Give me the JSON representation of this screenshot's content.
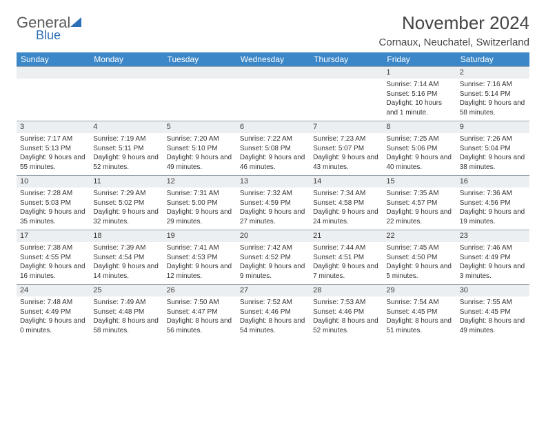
{
  "logo": {
    "general": "General",
    "blue": "Blue"
  },
  "title": "November 2024",
  "location": "Cornaux, Neuchatel, Switzerland",
  "colors": {
    "header_bg": "#3c87c7",
    "header_text": "#ffffff",
    "daynum_bg": "#eceff1",
    "border": "#9aa4ad",
    "text": "#333333",
    "logo_gray": "#5a5a5a",
    "logo_blue": "#2d6fb6"
  },
  "calendar": {
    "type": "table",
    "days_of_week": [
      "Sunday",
      "Monday",
      "Tuesday",
      "Wednesday",
      "Thursday",
      "Friday",
      "Saturday"
    ],
    "weeks": [
      [
        null,
        null,
        null,
        null,
        null,
        {
          "n": "1",
          "sr": "7:14 AM",
          "ss": "5:16 PM",
          "dl": "10 hours and 1 minute."
        },
        {
          "n": "2",
          "sr": "7:16 AM",
          "ss": "5:14 PM",
          "dl": "9 hours and 58 minutes."
        }
      ],
      [
        {
          "n": "3",
          "sr": "7:17 AM",
          "ss": "5:13 PM",
          "dl": "9 hours and 55 minutes."
        },
        {
          "n": "4",
          "sr": "7:19 AM",
          "ss": "5:11 PM",
          "dl": "9 hours and 52 minutes."
        },
        {
          "n": "5",
          "sr": "7:20 AM",
          "ss": "5:10 PM",
          "dl": "9 hours and 49 minutes."
        },
        {
          "n": "6",
          "sr": "7:22 AM",
          "ss": "5:08 PM",
          "dl": "9 hours and 46 minutes."
        },
        {
          "n": "7",
          "sr": "7:23 AM",
          "ss": "5:07 PM",
          "dl": "9 hours and 43 minutes."
        },
        {
          "n": "8",
          "sr": "7:25 AM",
          "ss": "5:06 PM",
          "dl": "9 hours and 40 minutes."
        },
        {
          "n": "9",
          "sr": "7:26 AM",
          "ss": "5:04 PM",
          "dl": "9 hours and 38 minutes."
        }
      ],
      [
        {
          "n": "10",
          "sr": "7:28 AM",
          "ss": "5:03 PM",
          "dl": "9 hours and 35 minutes."
        },
        {
          "n": "11",
          "sr": "7:29 AM",
          "ss": "5:02 PM",
          "dl": "9 hours and 32 minutes."
        },
        {
          "n": "12",
          "sr": "7:31 AM",
          "ss": "5:00 PM",
          "dl": "9 hours and 29 minutes."
        },
        {
          "n": "13",
          "sr": "7:32 AM",
          "ss": "4:59 PM",
          "dl": "9 hours and 27 minutes."
        },
        {
          "n": "14",
          "sr": "7:34 AM",
          "ss": "4:58 PM",
          "dl": "9 hours and 24 minutes."
        },
        {
          "n": "15",
          "sr": "7:35 AM",
          "ss": "4:57 PM",
          "dl": "9 hours and 22 minutes."
        },
        {
          "n": "16",
          "sr": "7:36 AM",
          "ss": "4:56 PM",
          "dl": "9 hours and 19 minutes."
        }
      ],
      [
        {
          "n": "17",
          "sr": "7:38 AM",
          "ss": "4:55 PM",
          "dl": "9 hours and 16 minutes."
        },
        {
          "n": "18",
          "sr": "7:39 AM",
          "ss": "4:54 PM",
          "dl": "9 hours and 14 minutes."
        },
        {
          "n": "19",
          "sr": "7:41 AM",
          "ss": "4:53 PM",
          "dl": "9 hours and 12 minutes."
        },
        {
          "n": "20",
          "sr": "7:42 AM",
          "ss": "4:52 PM",
          "dl": "9 hours and 9 minutes."
        },
        {
          "n": "21",
          "sr": "7:44 AM",
          "ss": "4:51 PM",
          "dl": "9 hours and 7 minutes."
        },
        {
          "n": "22",
          "sr": "7:45 AM",
          "ss": "4:50 PM",
          "dl": "9 hours and 5 minutes."
        },
        {
          "n": "23",
          "sr": "7:46 AM",
          "ss": "4:49 PM",
          "dl": "9 hours and 3 minutes."
        }
      ],
      [
        {
          "n": "24",
          "sr": "7:48 AM",
          "ss": "4:49 PM",
          "dl": "9 hours and 0 minutes."
        },
        {
          "n": "25",
          "sr": "7:49 AM",
          "ss": "4:48 PM",
          "dl": "8 hours and 58 minutes."
        },
        {
          "n": "26",
          "sr": "7:50 AM",
          "ss": "4:47 PM",
          "dl": "8 hours and 56 minutes."
        },
        {
          "n": "27",
          "sr": "7:52 AM",
          "ss": "4:46 PM",
          "dl": "8 hours and 54 minutes."
        },
        {
          "n": "28",
          "sr": "7:53 AM",
          "ss": "4:46 PM",
          "dl": "8 hours and 52 minutes."
        },
        {
          "n": "29",
          "sr": "7:54 AM",
          "ss": "4:45 PM",
          "dl": "8 hours and 51 minutes."
        },
        {
          "n": "30",
          "sr": "7:55 AM",
          "ss": "4:45 PM",
          "dl": "8 hours and 49 minutes."
        }
      ]
    ],
    "labels": {
      "sunrise": "Sunrise:",
      "sunset": "Sunset:",
      "daylight": "Daylight:"
    }
  }
}
